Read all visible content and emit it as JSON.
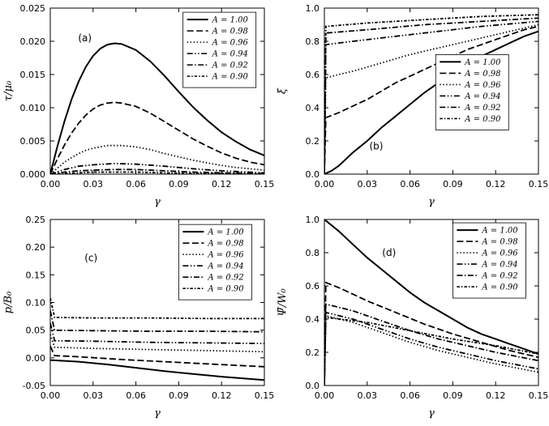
{
  "figure": {
    "background": "#ffffff",
    "line_color": "#000000",
    "tick_fontsize": 11,
    "label_fontsize": 13
  },
  "chart_data": [
    {
      "id": "a",
      "type": "line",
      "panel_label": "(a)",
      "xlabel": "γ",
      "ylabel": "τ/μ₀",
      "xlim": [
        0,
        0.15
      ],
      "ylim": [
        0,
        0.025
      ],
      "xtick_vals": [
        0,
        0.03,
        0.06,
        0.09,
        0.12,
        0.15
      ],
      "xtick_labels": [
        "0.00",
        "0.03",
        "0.06",
        "0.09",
        "0.12",
        "0.15"
      ],
      "ytick_vals": [
        0,
        0.005,
        0.01,
        0.015,
        0.02,
        0.025
      ],
      "ytick_labels": [
        "0.000",
        "0.005",
        "0.010",
        "0.015",
        "0.020",
        "0.025"
      ],
      "grid": false,
      "legend_pos": [
        0.62,
        0.025
      ],
      "label_pos": [
        0.13,
        0.8
      ],
      "series": [
        {
          "name": "A = 1.00",
          "linestyle": "solid",
          "x": [
            0,
            0.005,
            0.01,
            0.015,
            0.02,
            0.025,
            0.03,
            0.035,
            0.04,
            0.045,
            0.05,
            0.06,
            0.07,
            0.08,
            0.09,
            0.1,
            0.11,
            0.12,
            0.13,
            0.14,
            0.15
          ],
          "y": [
            0,
            0.0042,
            0.008,
            0.0113,
            0.014,
            0.0162,
            0.0178,
            0.0189,
            0.0195,
            0.0197,
            0.0196,
            0.0187,
            0.017,
            0.0148,
            0.0124,
            0.0101,
            0.0081,
            0.0063,
            0.0049,
            0.0037,
            0.0028
          ]
        },
        {
          "name": "A = 0.98",
          "linestyle": "dashed",
          "x": [
            0,
            0.005,
            0.01,
            0.015,
            0.02,
            0.025,
            0.03,
            0.035,
            0.04,
            0.045,
            0.05,
            0.06,
            0.07,
            0.08,
            0.09,
            0.1,
            0.11,
            0.12,
            0.13,
            0.14,
            0.15
          ],
          "y": [
            0,
            0.0023,
            0.0044,
            0.0062,
            0.0077,
            0.0089,
            0.0098,
            0.0104,
            0.0107,
            0.0108,
            0.0107,
            0.0102,
            0.0092,
            0.0079,
            0.0066,
            0.0053,
            0.0042,
            0.0032,
            0.0024,
            0.0018,
            0.0014
          ]
        },
        {
          "name": "A = 0.96",
          "linestyle": "dotted",
          "x": [
            0,
            0.005,
            0.01,
            0.015,
            0.02,
            0.025,
            0.03,
            0.035,
            0.04,
            0.045,
            0.05,
            0.06,
            0.07,
            0.08,
            0.09,
            0.1,
            0.11,
            0.12,
            0.13,
            0.14,
            0.15
          ],
          "y": [
            0,
            0.0009,
            0.0018,
            0.0025,
            0.0031,
            0.0036,
            0.0039,
            0.0041,
            0.0043,
            0.0043,
            0.0043,
            0.0041,
            0.0037,
            0.0031,
            0.0026,
            0.0021,
            0.0017,
            0.0013,
            0.001,
            0.0008,
            0.0006
          ]
        },
        {
          "name": "A = 0.94",
          "linestyle": "dashdotdot",
          "x": [
            0,
            0.01,
            0.02,
            0.03,
            0.045,
            0.06,
            0.08,
            0.1,
            0.12,
            0.15
          ],
          "y": [
            0,
            0.0007,
            0.0012,
            0.0014,
            0.0016,
            0.0015,
            0.0012,
            0.0008,
            0.0005,
            0.0002
          ]
        },
        {
          "name": "A = 0.92",
          "linestyle": "dashdot",
          "x": [
            0,
            0.01,
            0.02,
            0.03,
            0.045,
            0.06,
            0.08,
            0.1,
            0.12,
            0.15
          ],
          "y": [
            0,
            0.0003,
            0.0005,
            0.0006,
            0.0007,
            0.0007,
            0.0005,
            0.0003,
            0.0002,
            0.0001
          ]
        },
        {
          "name": "A = 0.90",
          "linestyle": "shortdashdot",
          "x": [
            0,
            0.01,
            0.02,
            0.03,
            0.045,
            0.06,
            0.08,
            0.1,
            0.12,
            0.15
          ],
          "y": [
            0,
            0.0001,
            0.0002,
            0.0003,
            0.0003,
            0.0003,
            0.0002,
            0.0001,
            0.0001,
            0
          ]
        }
      ]
    },
    {
      "id": "b",
      "type": "line",
      "panel_label": "(b)",
      "xlabel": "γ",
      "ylabel": "ξ",
      "xlim": [
        0,
        0.15
      ],
      "ylim": [
        0,
        1.0
      ],
      "xtick_vals": [
        0,
        0.03,
        0.06,
        0.09,
        0.12,
        0.15
      ],
      "xtick_labels": [
        "0.00",
        "0.03",
        "0.06",
        "0.09",
        "0.12",
        "0.15"
      ],
      "ytick_vals": [
        0,
        0.2,
        0.4,
        0.6,
        0.8,
        1.0
      ],
      "ytick_labels": [
        "0.0",
        "0.2",
        "0.4",
        "0.6",
        "0.8",
        "1.0"
      ],
      "grid": false,
      "legend_pos": [
        0.52,
        0.28
      ],
      "label_pos": [
        0.21,
        0.15
      ],
      "series": [
        {
          "name": "A = 1.00",
          "linestyle": "solid",
          "x": [
            0,
            0.005,
            0.01,
            0.015,
            0.02,
            0.03,
            0.04,
            0.05,
            0.06,
            0.07,
            0.08,
            0.09,
            0.1,
            0.11,
            0.12,
            0.13,
            0.14,
            0.15
          ],
          "y": [
            0,
            0.02,
            0.05,
            0.09,
            0.13,
            0.2,
            0.28,
            0.35,
            0.42,
            0.49,
            0.55,
            0.61,
            0.66,
            0.71,
            0.75,
            0.79,
            0.83,
            0.86
          ]
        },
        {
          "name": "A = 0.98",
          "linestyle": "dashed",
          "x": [
            0,
            0.001,
            0.01,
            0.02,
            0.03,
            0.04,
            0.05,
            0.06,
            0.07,
            0.08,
            0.09,
            0.1,
            0.11,
            0.12,
            0.13,
            0.14,
            0.15
          ],
          "y": [
            0,
            0.34,
            0.37,
            0.41,
            0.45,
            0.5,
            0.55,
            0.59,
            0.63,
            0.67,
            0.71,
            0.75,
            0.78,
            0.81,
            0.84,
            0.87,
            0.89
          ]
        },
        {
          "name": "A = 0.96",
          "linestyle": "dotted",
          "x": [
            0,
            0.001,
            0.01,
            0.02,
            0.04,
            0.06,
            0.08,
            0.1,
            0.12,
            0.14,
            0.15
          ],
          "y": [
            0,
            0.58,
            0.6,
            0.62,
            0.67,
            0.72,
            0.76,
            0.8,
            0.84,
            0.88,
            0.9
          ]
        },
        {
          "name": "A = 0.94",
          "linestyle": "dashdotdot",
          "x": [
            0,
            0.001,
            0.02,
            0.05,
            0.08,
            0.11,
            0.15
          ],
          "y": [
            0,
            0.78,
            0.8,
            0.83,
            0.86,
            0.89,
            0.92
          ]
        },
        {
          "name": "A = 0.92",
          "linestyle": "dashdot",
          "x": [
            0,
            0.001,
            0.03,
            0.07,
            0.11,
            0.15
          ],
          "y": [
            0,
            0.85,
            0.87,
            0.9,
            0.92,
            0.94
          ]
        },
        {
          "name": "A = 0.90",
          "linestyle": "shortdashdot",
          "x": [
            0,
            0.001,
            0.03,
            0.07,
            0.11,
            0.15
          ],
          "y": [
            0,
            0.89,
            0.91,
            0.93,
            0.95,
            0.96
          ]
        }
      ]
    },
    {
      "id": "c",
      "type": "line",
      "panel_label": "(c)",
      "xlabel": "γ",
      "ylabel": "p/B₀",
      "xlim": [
        0,
        0.15
      ],
      "ylim": [
        -0.05,
        0.25
      ],
      "xtick_vals": [
        0,
        0.03,
        0.06,
        0.09,
        0.12,
        0.15
      ],
      "xtick_labels": [
        "0.00",
        "0.03",
        "0.06",
        "0.09",
        "0.12",
        "0.15"
      ],
      "ytick_vals": [
        -0.05,
        0,
        0.05,
        0.1,
        0.15,
        0.2,
        0.25
      ],
      "ytick_labels": [
        "-0.05",
        "0.00",
        "0.05",
        "0.10",
        "0.15",
        "0.20",
        "0.25"
      ],
      "grid": false,
      "legend_pos": [
        0.6,
        0.03
      ],
      "label_pos": [
        0.16,
        0.75
      ],
      "series": [
        {
          "name": "A = 1.00",
          "linestyle": "solid",
          "x": [
            0,
            0.02,
            0.04,
            0.06,
            0.08,
            0.1,
            0.12,
            0.15
          ],
          "y": [
            -0.004,
            -0.007,
            -0.012,
            -0.018,
            -0.024,
            -0.029,
            -0.034,
            -0.04
          ]
        },
        {
          "name": "A = 0.98",
          "linestyle": "dashed",
          "x": [
            0,
            0.003,
            0.02,
            0.05,
            0.08,
            0.11,
            0.15
          ],
          "y": [
            0.021,
            0.004,
            0.002,
            -0.003,
            -0.007,
            -0.011,
            -0.016
          ]
        },
        {
          "name": "A = 0.96",
          "linestyle": "dotted",
          "x": [
            0,
            0.003,
            0.03,
            0.07,
            0.11,
            0.15
          ],
          "y": [
            0.042,
            0.019,
            0.017,
            0.015,
            0.013,
            0.011
          ]
        },
        {
          "name": "A = 0.94",
          "linestyle": "dashdotdot",
          "x": [
            0,
            0.003,
            0.03,
            0.07,
            0.11,
            0.15
          ],
          "y": [
            0.063,
            0.031,
            0.03,
            0.028,
            0.027,
            0.026
          ]
        },
        {
          "name": "A = 0.92",
          "linestyle": "dashdot",
          "x": [
            0,
            0.003,
            0.03,
            0.07,
            0.11,
            0.15
          ],
          "y": [
            0.085,
            0.05,
            0.049,
            0.048,
            0.048,
            0.047
          ]
        },
        {
          "name": "A = 0.90",
          "linestyle": "shortdashdot",
          "x": [
            0,
            0.003,
            0.03,
            0.07,
            0.11,
            0.15
          ],
          "y": [
            0.108,
            0.073,
            0.072,
            0.072,
            0.071,
            0.071
          ]
        }
      ]
    },
    {
      "id": "d",
      "type": "line",
      "panel_label": "(d)",
      "xlabel": "γ",
      "ylabel": "Ψ̄/W₀",
      "xlim": [
        0,
        0.15
      ],
      "ylim": [
        0,
        1.0
      ],
      "xtick_vals": [
        0,
        0.03,
        0.06,
        0.09,
        0.12,
        0.15
      ],
      "xtick_labels": [
        "0.00",
        "0.03",
        "0.06",
        "0.09",
        "0.12",
        "0.15"
      ],
      "ytick_vals": [
        0,
        0.2,
        0.4,
        0.6,
        0.8,
        1.0
      ],
      "ytick_labels": [
        "0.0",
        "0.2",
        "0.4",
        "0.6",
        "0.8",
        "1.0"
      ],
      "grid": false,
      "legend_pos": [
        0.6,
        0.02
      ],
      "label_pos": [
        0.27,
        0.78
      ],
      "series": [
        {
          "name": "A = 1.00",
          "linestyle": "solid",
          "x": [
            0,
            0.01,
            0.02,
            0.03,
            0.04,
            0.05,
            0.06,
            0.07,
            0.08,
            0.09,
            0.1,
            0.11,
            0.12,
            0.13,
            0.14,
            0.15
          ],
          "y": [
            1,
            0.93,
            0.85,
            0.77,
            0.7,
            0.63,
            0.56,
            0.5,
            0.45,
            0.4,
            0.35,
            0.31,
            0.28,
            0.25,
            0.22,
            0.19
          ]
        },
        {
          "name": "A = 0.98",
          "linestyle": "dashed",
          "x": [
            0,
            0.001,
            0.01,
            0.02,
            0.03,
            0.05,
            0.07,
            0.09,
            0.11,
            0.13,
            0.15
          ],
          "y": [
            0,
            0.62,
            0.59,
            0.55,
            0.51,
            0.44,
            0.37,
            0.31,
            0.26,
            0.21,
            0.17
          ]
        },
        {
          "name": "A = 0.96",
          "linestyle": "dotted",
          "x": [
            0,
            0.001,
            0.02,
            0.04,
            0.06,
            0.08,
            0.1,
            0.12,
            0.15
          ],
          "y": [
            0,
            0.42,
            0.38,
            0.32,
            0.26,
            0.21,
            0.17,
            0.13,
            0.08
          ]
        },
        {
          "name": "A = 0.94",
          "linestyle": "dashdotdot",
          "x": [
            0,
            0.001,
            0.02,
            0.04,
            0.06,
            0.08,
            0.1,
            0.12,
            0.15
          ],
          "y": [
            0,
            0.44,
            0.4,
            0.34,
            0.28,
            0.23,
            0.19,
            0.15,
            0.1
          ]
        },
        {
          "name": "A = 0.92",
          "linestyle": "dashdot",
          "x": [
            0,
            0.001,
            0.02,
            0.04,
            0.06,
            0.08,
            0.1,
            0.12,
            0.15
          ],
          "y": [
            0,
            0.49,
            0.45,
            0.39,
            0.33,
            0.28,
            0.24,
            0.2,
            0.15
          ]
        },
        {
          "name": "A = 0.90",
          "linestyle": "shortdashdot",
          "x": [
            0,
            0.001,
            0.03,
            0.06,
            0.09,
            0.12,
            0.15
          ],
          "y": [
            0,
            0.41,
            0.38,
            0.33,
            0.28,
            0.24,
            0.19
          ]
        }
      ]
    }
  ]
}
